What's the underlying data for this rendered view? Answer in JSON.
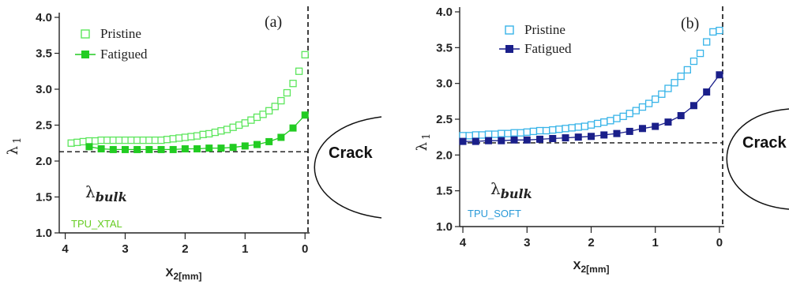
{
  "chart_data": [
    {
      "type": "scatter",
      "panel_label": "(a)",
      "sample_label": "TPU_XTAL",
      "sample_color": "#66cc22",
      "xlabel_main": "X",
      "xlabel_sub": "2[mm]",
      "ylabel_main": "λ",
      "ylabel_sub": "1",
      "xlim": [
        4.1,
        -0.05
      ],
      "ylim": [
        1.0,
        4.0
      ],
      "x_ticks": [
        4,
        3,
        2,
        1,
        0
      ],
      "y_ticks": [
        1.0,
        1.5,
        2.0,
        2.5,
        3.0,
        3.5,
        4.0
      ],
      "x_tick_labels": [
        "4",
        "3",
        "2",
        "1",
        "0"
      ],
      "y_tick_labels": [
        "1.0",
        "1.5",
        "2.0",
        "2.5",
        "3.0",
        "3.5",
        "4.0"
      ],
      "crack_text": "Crack",
      "bulk_label_main": "λ",
      "bulk_label_sub": "bulk",
      "bulk_value": 2.13,
      "color_pristine": "#5ce65c",
      "color_fatigued": "#22cc22",
      "series": [
        {
          "name": "Pristine",
          "marker": "open-square",
          "x": [
            3.9,
            3.8,
            3.7,
            3.6,
            3.5,
            3.4,
            3.3,
            3.2,
            3.1,
            3.0,
            2.9,
            2.8,
            2.7,
            2.6,
            2.5,
            2.4,
            2.3,
            2.2,
            2.1,
            2.0,
            1.9,
            1.8,
            1.7,
            1.6,
            1.5,
            1.4,
            1.3,
            1.2,
            1.1,
            1.0,
            0.9,
            0.8,
            0.7,
            0.6,
            0.5,
            0.4,
            0.3,
            0.2,
            0.1,
            0.0
          ],
          "y": [
            2.25,
            2.26,
            2.27,
            2.28,
            2.28,
            2.29,
            2.29,
            2.29,
            2.29,
            2.29,
            2.29,
            2.29,
            2.29,
            2.29,
            2.29,
            2.29,
            2.3,
            2.31,
            2.32,
            2.33,
            2.34,
            2.35,
            2.37,
            2.38,
            2.4,
            2.42,
            2.44,
            2.47,
            2.5,
            2.53,
            2.57,
            2.61,
            2.65,
            2.7,
            2.76,
            2.84,
            2.95,
            3.08,
            3.25,
            3.48
          ]
        },
        {
          "name": "Fatigued",
          "marker": "filled-square-line",
          "x": [
            3.6,
            3.4,
            3.2,
            3.0,
            2.8,
            2.6,
            2.4,
            2.2,
            2.0,
            1.8,
            1.6,
            1.4,
            1.2,
            1.0,
            0.8,
            0.6,
            0.4,
            0.2,
            0.0
          ],
          "y": [
            2.2,
            2.17,
            2.16,
            2.16,
            2.16,
            2.16,
            2.16,
            2.16,
            2.17,
            2.17,
            2.18,
            2.18,
            2.19,
            2.21,
            2.23,
            2.27,
            2.33,
            2.46,
            2.64
          ]
        }
      ]
    },
    {
      "type": "scatter",
      "panel_label": "(b)",
      "sample_label": "TPU_SOFT",
      "sample_color": "#2a9ad8",
      "xlabel_main": "X",
      "xlabel_sub": "2[mm]",
      "ylabel_main": "λ",
      "ylabel_sub": "1",
      "xlim": [
        4.05,
        -0.05
      ],
      "ylim": [
        1.0,
        4.0
      ],
      "x_ticks": [
        4,
        3,
        2,
        1,
        0
      ],
      "y_ticks": [
        1.0,
        1.5,
        2.0,
        2.5,
        3.0,
        3.5,
        4.0
      ],
      "x_tick_labels": [
        "4",
        "3",
        "2",
        "1",
        "0"
      ],
      "y_tick_labels": [
        "1.0",
        "1.5",
        "2.0",
        "2.5",
        "3.0",
        "3.5",
        "4.0"
      ],
      "crack_text": "Crack",
      "bulk_label_main": "λ",
      "bulk_label_sub": "bulk",
      "bulk_value": 2.17,
      "color_pristine": "#38b4e8",
      "color_fatigued": "#1a1f8a",
      "series": [
        {
          "name": "Pristine",
          "marker": "open-square",
          "x": [
            4.0,
            3.9,
            3.8,
            3.7,
            3.6,
            3.5,
            3.4,
            3.3,
            3.2,
            3.1,
            3.0,
            2.9,
            2.8,
            2.7,
            2.6,
            2.5,
            2.4,
            2.3,
            2.2,
            2.1,
            2.0,
            1.9,
            1.8,
            1.7,
            1.6,
            1.5,
            1.4,
            1.3,
            1.2,
            1.1,
            1.0,
            0.9,
            0.8,
            0.7,
            0.6,
            0.5,
            0.4,
            0.3,
            0.2,
            0.1,
            0.0
          ],
          "y": [
            2.27,
            2.27,
            2.28,
            2.28,
            2.29,
            2.29,
            2.3,
            2.3,
            2.31,
            2.31,
            2.32,
            2.33,
            2.34,
            2.34,
            2.35,
            2.36,
            2.37,
            2.38,
            2.39,
            2.4,
            2.42,
            2.44,
            2.46,
            2.48,
            2.51,
            2.54,
            2.58,
            2.62,
            2.67,
            2.72,
            2.78,
            2.85,
            2.93,
            3.01,
            3.1,
            3.19,
            3.31,
            3.42,
            3.58,
            3.72,
            3.74
          ]
        },
        {
          "name": "Fatigued",
          "marker": "filled-square-line",
          "x": [
            4.0,
            3.8,
            3.6,
            3.4,
            3.2,
            3.0,
            2.8,
            2.6,
            2.4,
            2.2,
            2.0,
            1.8,
            1.6,
            1.4,
            1.2,
            1.0,
            0.8,
            0.6,
            0.4,
            0.2,
            0.0
          ],
          "y": [
            2.19,
            2.19,
            2.2,
            2.2,
            2.21,
            2.21,
            2.22,
            2.23,
            2.24,
            2.25,
            2.26,
            2.28,
            2.3,
            2.33,
            2.37,
            2.4,
            2.46,
            2.55,
            2.69,
            2.88,
            3.12
          ]
        }
      ]
    }
  ]
}
